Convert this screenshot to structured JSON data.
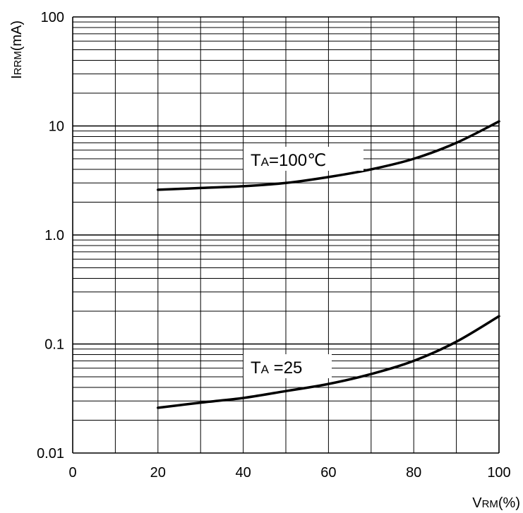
{
  "chart_data": {
    "type": "line",
    "title": "",
    "xlabel": {
      "main": "V",
      "sub": "RM",
      "tail": "(%)"
    },
    "ylabel": {
      "main": "I",
      "sub": "RRM",
      "tail": "(mA)"
    },
    "x_scale": "linear",
    "y_scale": "log",
    "xlim": [
      0,
      100
    ],
    "ylim": [
      0.01,
      100
    ],
    "x_ticks": [
      0,
      20,
      40,
      60,
      80,
      100
    ],
    "x_tick_labels": [
      "0",
      "20",
      "40",
      "60",
      "80",
      "100"
    ],
    "y_ticks": [
      0.01,
      0.1,
      1,
      10,
      100
    ],
    "y_tick_labels": [
      "0.01",
      "0.1",
      "1.0",
      "10",
      "100"
    ],
    "grid": true,
    "series": [
      {
        "label": {
          "main": "T",
          "sub": "A",
          "tail": "=100℃"
        },
        "x": [
          20,
          30,
          40,
          50,
          60,
          70,
          80,
          90,
          100
        ],
        "y": [
          2.6,
          2.7,
          2.8,
          3.0,
          3.4,
          4.0,
          5.0,
          7.0,
          11.0
        ]
      },
      {
        "label": {
          "main": "T",
          "sub": "A",
          "tail": " =25"
        },
        "x": [
          20,
          30,
          40,
          50,
          60,
          70,
          80,
          90,
          100
        ],
        "y": [
          0.026,
          0.029,
          0.032,
          0.037,
          0.043,
          0.053,
          0.07,
          0.105,
          0.18
        ]
      }
    ],
    "colors": {
      "line": "#000000",
      "grid": "#000000",
      "background": "#ffffff"
    }
  }
}
